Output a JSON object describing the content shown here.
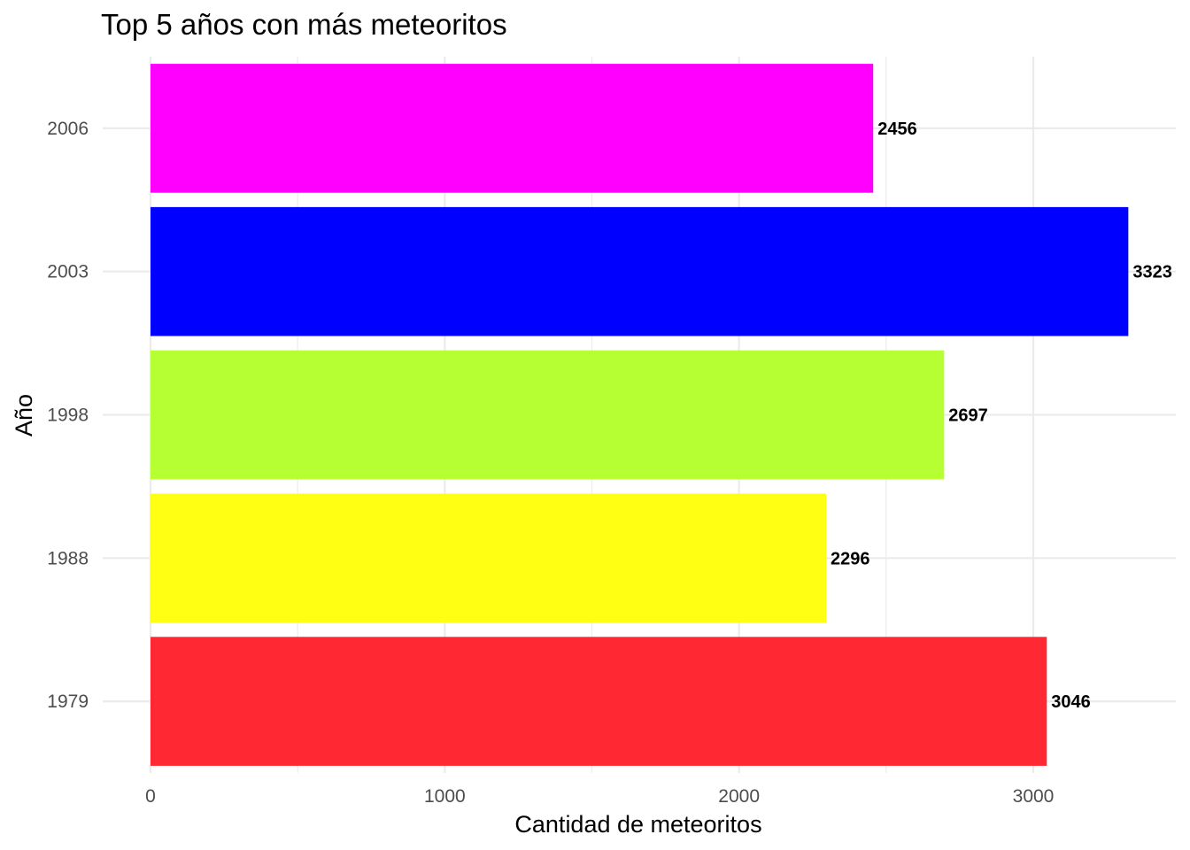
{
  "chart_data": {
    "type": "bar",
    "orientation": "horizontal",
    "title": "Top 5 años con más meteoritos",
    "xlabel": "Cantidad de meteoritos",
    "ylabel": "Año",
    "categories": [
      "1979",
      "1988",
      "1998",
      "2003",
      "2006"
    ],
    "values": [
      3046,
      2296,
      2697,
      3323,
      2456
    ],
    "colors": [
      "#FF2833",
      "#FFFF14",
      "#B5FF33",
      "#0000FF",
      "#FF00FF"
    ],
    "xlim": [
      0,
      3480
    ],
    "x_ticks": [
      0,
      1000,
      2000,
      3000
    ],
    "x_tick_labels": [
      "0",
      "1000",
      "2000",
      "3000"
    ],
    "grid": true,
    "legend": "none"
  }
}
